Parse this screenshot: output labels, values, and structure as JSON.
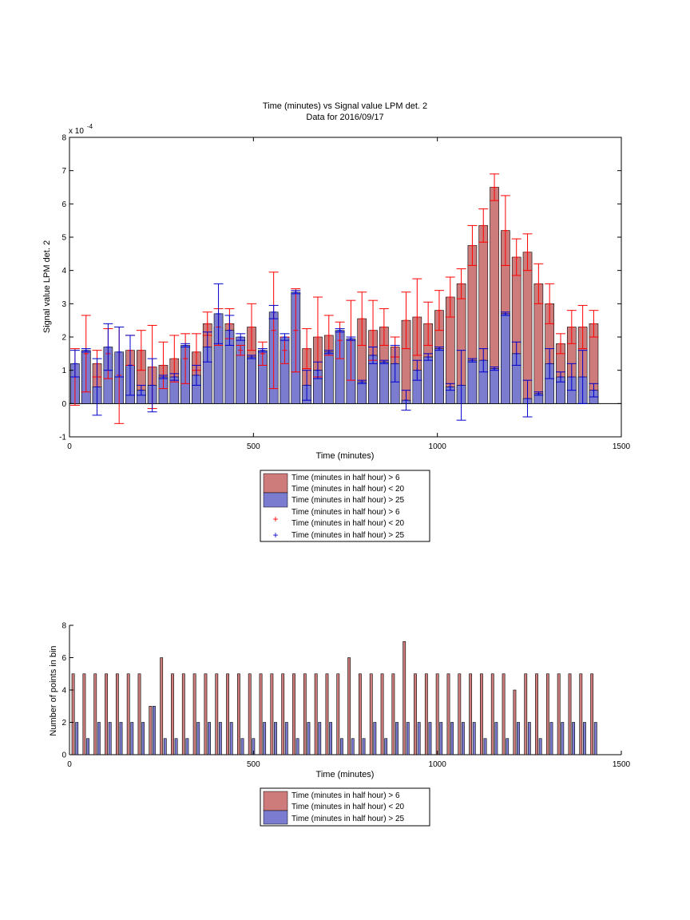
{
  "colors": {
    "series_a": "#cd7b7b",
    "series_b": "#7b7bd0",
    "error_a": "#ff0000",
    "error_b": "#0000cc",
    "axis": "#000000"
  },
  "chart_data": [
    {
      "type": "bar",
      "title": "Time (minutes) vs Signal value LPM det. 2",
      "subtitle": "Data for 2016/09/17",
      "xlabel": "Time (minutes)",
      "ylabel": "Signal value LPM det. 2",
      "y_exponent_label": "x 10",
      "y_exponent": "-4",
      "xlim": [
        0,
        1500
      ],
      "ylim": [
        -1,
        8
      ],
      "xticks": [
        0,
        500,
        1000,
        1500
      ],
      "yticks": [
        -1,
        0,
        1,
        2,
        3,
        4,
        5,
        6,
        7,
        8
      ],
      "x": [
        15,
        45,
        75,
        105,
        135,
        165,
        195,
        225,
        255,
        285,
        315,
        345,
        375,
        405,
        435,
        465,
        495,
        525,
        555,
        585,
        615,
        645,
        675,
        705,
        735,
        765,
        795,
        825,
        855,
        885,
        915,
        945,
        975,
        1005,
        1035,
        1065,
        1095,
        1125,
        1155,
        1185,
        1215,
        1245,
        1275,
        1305,
        1335,
        1365,
        1395,
        1425
      ],
      "series": [
        {
          "name": "Time (minutes in half hour) > 6",
          "values": [
            0.8,
            1.5,
            1.2,
            1.5,
            0.85,
            1.6,
            1.6,
            1.1,
            1.15,
            1.35,
            1.35,
            1.55,
            2.4,
            2.3,
            2.4,
            1.6,
            2.3,
            1.5,
            2.2,
            1.6,
            2.2,
            1.65,
            2.0,
            2.05,
            1.9,
            1.9,
            2.55,
            2.2,
            2.3,
            1.7,
            2.5,
            2.6,
            2.4,
            2.8,
            3.2,
            3.6,
            4.75,
            5.35,
            6.5,
            5.2,
            4.4,
            4.55,
            3.6,
            3.0,
            1.8,
            2.3,
            2.3,
            2.4
          ],
          "error": [
            0.85,
            1.15,
            0.4,
            0.75,
            1.45,
            0.45,
            0.6,
            1.25,
            0.7,
            0.7,
            0.75,
            0.55,
            0.35,
            0.55,
            0.45,
            0.15,
            0.7,
            0.35,
            1.75,
            0.4,
            1.25,
            0.6,
            1.2,
            0.6,
            0.55,
            1.2,
            0.8,
            0.9,
            0.55,
            0.3,
            0.85,
            1.15,
            0.65,
            0.6,
            0.6,
            0.45,
            0.6,
            0.5,
            0.4,
            1.05,
            0.55,
            0.55,
            0.6,
            0.6,
            0.3,
            0.5,
            0.65,
            0.4
          ]
        },
        {
          "name": "Time (minutes in half hour) < 20",
          "values": [
            1.2,
            1.6,
            0.5,
            1.7,
            1.55,
            1.15,
            0.4,
            0.55,
            0.8,
            0.8,
            1.75,
            0.85,
            1.7,
            2.7,
            2.2,
            2.0,
            1.4,
            1.6,
            2.75,
            2.0,
            3.35,
            0.55,
            1.0,
            1.55,
            2.2,
            1.95,
            0.65,
            1.45,
            1.25,
            1.2,
            0.1,
            1.0,
            1.4,
            1.65,
            0.5,
            0.55,
            1.3,
            1.3,
            1.05,
            2.7,
            1.5,
            0.15,
            0.3,
            1.2,
            0.8,
            0.8,
            0.8,
            0.4
          ],
          "error": [
            0.4,
            0.05,
            0.85,
            0.7,
            0.75,
            0.9,
            0.15,
            0.8,
            0.05,
            0.1,
            0.05,
            0.3,
            0.45,
            0.9,
            0.45,
            0.1,
            0.05,
            0.05,
            0.2,
            0.1,
            0.05,
            0.45,
            0.25,
            0.05,
            0.05,
            0.05,
            0.05,
            0.25,
            0.05,
            0.55,
            0.3,
            0.3,
            0.1,
            0.05,
            0.1,
            1.05,
            0.05,
            0.35,
            0.05,
            0.05,
            0.35,
            0.55,
            0.05,
            0.45,
            0.15,
            0.4,
            0.8,
            0.2
          ]
        }
      ],
      "legend": {
        "placement": "below-chart",
        "entries": [
          "Time (minutes in half hour) > 6",
          "Time (minutes in half hour) < 20",
          "Time (minutes in half hour) > 25",
          "Time (minutes in half hour) > 6",
          "Time (minutes in half hour) < 20",
          "Time (minutes in half hour) > 25"
        ]
      }
    },
    {
      "type": "bar",
      "xlabel": "Time (minutes)",
      "ylabel": "Number of points in bin",
      "xlim": [
        0,
        1500
      ],
      "ylim": [
        0,
        8
      ],
      "xticks": [
        0,
        500,
        1000,
        1500
      ],
      "yticks": [
        0,
        2,
        4,
        6,
        8
      ],
      "x": [
        15,
        45,
        75,
        105,
        135,
        165,
        195,
        225,
        255,
        285,
        315,
        345,
        375,
        405,
        435,
        465,
        495,
        525,
        555,
        585,
        615,
        645,
        675,
        705,
        735,
        765,
        795,
        825,
        855,
        885,
        915,
        945,
        975,
        1005,
        1035,
        1065,
        1095,
        1125,
        1155,
        1185,
        1215,
        1245,
        1275,
        1305,
        1335,
        1365,
        1395,
        1425
      ],
      "series": [
        {
          "name": "Time (minutes in half hour) > 6",
          "values": [
            5,
            5,
            5,
            5,
            5,
            5,
            5,
            3,
            6,
            5,
            5,
            5,
            5,
            5,
            5,
            5,
            5,
            5,
            5,
            5,
            5,
            5,
            5,
            5,
            5,
            6,
            5,
            5,
            5,
            5,
            7,
            5,
            5,
            5,
            5,
            5,
            5,
            5,
            5,
            5,
            4,
            5,
            5,
            5,
            5,
            5,
            5,
            5
          ]
        },
        {
          "name": "Time (minutes in half hour) < 20",
          "values": [
            2,
            1,
            2,
            2,
            2,
            2,
            2,
            3,
            1,
            1,
            1,
            2,
            2,
            2,
            2,
            1,
            1,
            2,
            2,
            2,
            1,
            2,
            2,
            2,
            1,
            1,
            1,
            2,
            1,
            2,
            2,
            2,
            2,
            2,
            2,
            2,
            2,
            1,
            2,
            1,
            2,
            2,
            1,
            2,
            2,
            2,
            2,
            2
          ]
        }
      ],
      "legend": {
        "placement": "below-chart",
        "entries": [
          "Time (minutes in half hour) > 6",
          "Time (minutes in half hour) < 20",
          "Time (minutes in half hour) > 25"
        ]
      }
    }
  ]
}
